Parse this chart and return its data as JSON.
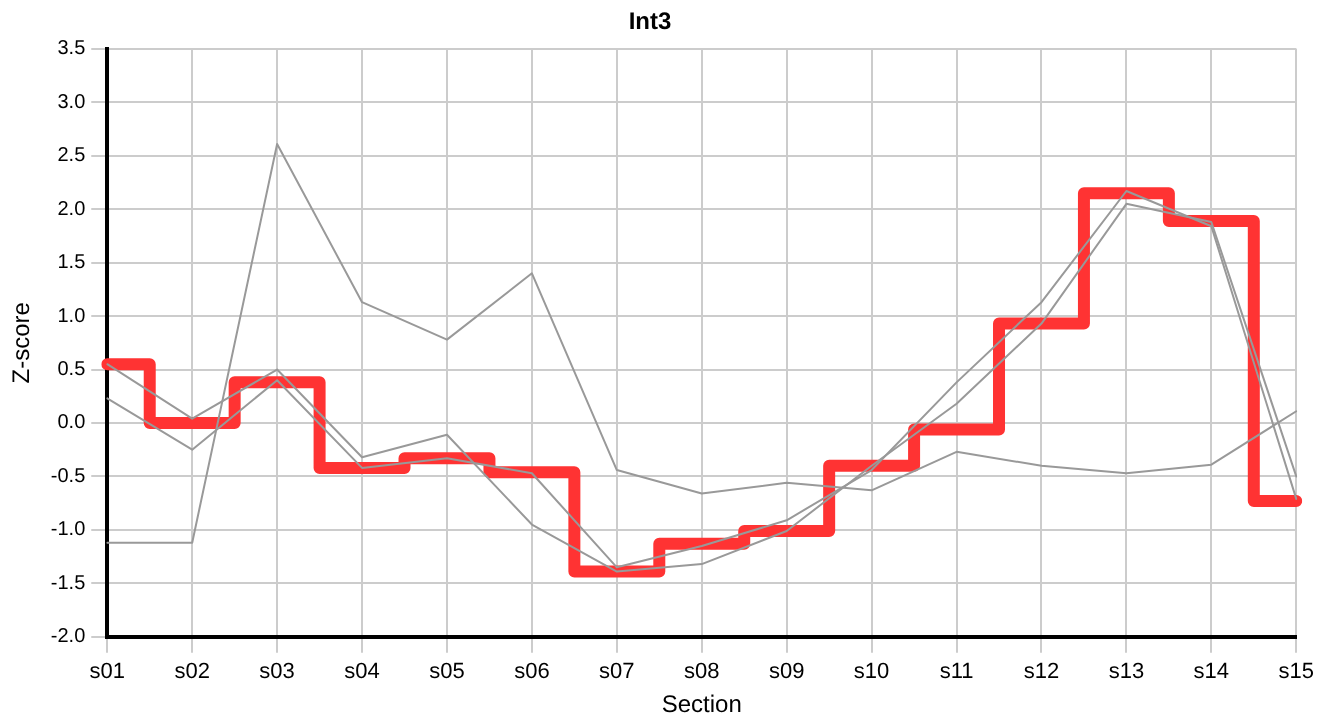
{
  "chart_data": {
    "type": "line",
    "title": "Int3",
    "xlabel": "Section",
    "ylabel": "Z-score",
    "categories": [
      "s01",
      "s02",
      "s03",
      "s04",
      "s05",
      "s06",
      "s07",
      "s08",
      "s09",
      "s10",
      "s11",
      "s12",
      "s13",
      "s14",
      "s15"
    ],
    "series": [
      {
        "color": "#999999",
        "values": [
          -1.12,
          -1.12,
          2.61,
          1.13,
          0.78,
          1.4,
          -0.44,
          -0.66,
          -0.56,
          -0.63,
          -0.27,
          -0.4,
          -0.47,
          -0.39,
          0.11
        ]
      },
      {
        "color": "#999999",
        "values": [
          0.55,
          0.04,
          0.5,
          -0.32,
          -0.11,
          -0.95,
          -1.39,
          -1.32,
          -1.01,
          -0.4,
          0.18,
          0.93,
          2.05,
          1.88,
          -0.5
        ]
      },
      {
        "color": "#999999",
        "values": [
          0.23,
          -0.25,
          0.4,
          -0.42,
          -0.33,
          -0.47,
          -1.35,
          -1.15,
          -0.91,
          -0.44,
          0.38,
          1.13,
          2.17,
          1.84,
          -0.71
        ]
      },
      {
        "type": "step",
        "color": "#ff3333",
        "values": [
          0.55,
          0.0,
          0.38,
          -0.42,
          -0.33,
          -0.46,
          -1.39,
          -1.13,
          -1.01,
          -0.4,
          -0.06,
          0.93,
          2.15,
          1.89,
          -0.73
        ]
      }
    ],
    "ylim": [
      -2,
      3.5
    ],
    "yticks": [
      {
        "value": -2,
        "label": "-2.0"
      },
      -1.5,
      {
        "value": -1,
        "label": "-1.0"
      },
      -0.5,
      {
        "value": 0,
        "label": "0.0"
      },
      0.5,
      {
        "value": 1,
        "label": "1.0"
      },
      1.5,
      {
        "value": 2,
        "label": "2.0"
      },
      2.5,
      {
        "value": 3,
        "label": "3.0"
      },
      3.5
    ],
    "grid": true,
    "legend": false,
    "marker": "none"
  }
}
